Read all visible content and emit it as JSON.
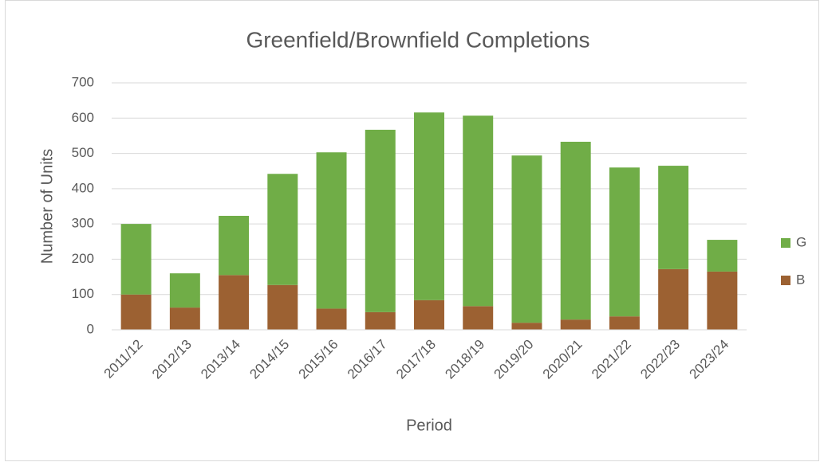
{
  "chart_data": {
    "type": "stacked_bar",
    "title": "Greenfield/Brownfield Completions",
    "x_label": "Period",
    "y_label": "Number of Units",
    "categories": [
      "2011/12",
      "2012/13",
      "2013/14",
      "2014/15",
      "2015/16",
      "2016/17",
      "2017/18",
      "2018/19",
      "2019/20",
      "2020/21",
      "2021/22",
      "2022/23",
      "2023/24"
    ],
    "series": [
      {
        "name": "B",
        "color": "#9c6132",
        "values": [
          100,
          63,
          155,
          127,
          60,
          50,
          84,
          67,
          20,
          29,
          38,
          172,
          165
        ]
      },
      {
        "name": "G",
        "color": "#70ad47",
        "values": [
          200,
          97,
          168,
          315,
          443,
          517,
          532,
          540,
          474,
          504,
          422,
          293,
          90
        ]
      }
    ],
    "ylim": [
      0,
      700
    ],
    "yticks": [
      0,
      100,
      200,
      300,
      400,
      500,
      600,
      700
    ],
    "grid": true,
    "legend": "right"
  }
}
